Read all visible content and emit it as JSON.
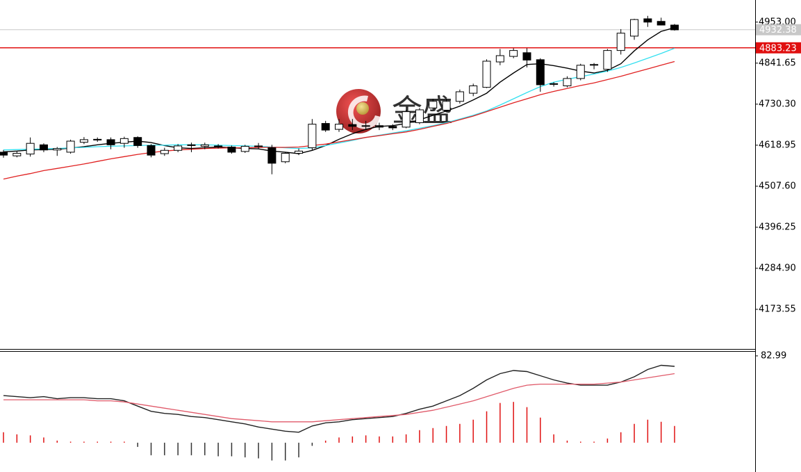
{
  "chart_data": [
    {
      "type": "candlestick",
      "watermark": "金盛",
      "open": [
        4600,
        4590,
        4595,
        4620,
        4606,
        4600,
        4627,
        4633,
        4634,
        4624,
        4640,
        4618,
        4596,
        4605,
        4620,
        4616,
        4617,
        4614,
        4602,
        4615,
        4612,
        4574,
        4597,
        4612,
        4678,
        4662,
        4675,
        4670,
        4672,
        4670,
        4668,
        4680,
        4720,
        4714,
        4738,
        4760,
        4776,
        4845,
        4860,
        4870,
        4851,
        4786,
        4780,
        4800,
        4836,
        4825,
        4876,
        4915,
        4962,
        4955,
        4945
      ],
      "high": [
        4606,
        4602,
        4640,
        4624,
        4614,
        4634,
        4641,
        4640,
        4640,
        4642,
        4643,
        4622,
        4612,
        4622,
        4626,
        4626,
        4622,
        4618,
        4620,
        4625,
        4620,
        4600,
        4610,
        4690,
        4685,
        4690,
        4690,
        4685,
        4680,
        4676,
        4715,
        4720,
        4745,
        4745,
        4770,
        4786,
        4852,
        4880,
        4882,
        4882,
        4855,
        4790,
        4806,
        4840,
        4842,
        4880,
        4934,
        4962,
        4970,
        4965,
        4948
      ],
      "low": [
        4585,
        4586,
        4588,
        4600,
        4590,
        4596,
        4622,
        4628,
        4608,
        4612,
        4612,
        4586,
        4590,
        4600,
        4600,
        4608,
        4610,
        4596,
        4598,
        4610,
        4540,
        4570,
        4592,
        4606,
        4655,
        4655,
        4660,
        4660,
        4660,
        4660,
        4665,
        4676,
        4715,
        4710,
        4732,
        4752,
        4774,
        4836,
        4855,
        4830,
        4764,
        4778,
        4776,
        4795,
        4825,
        4818,
        4865,
        4905,
        4940,
        4944,
        4930
      ],
      "close": [
        4592,
        4597,
        4624,
        4606,
        4610,
        4630,
        4634,
        4635,
        4620,
        4637,
        4618,
        4592,
        4605,
        4617,
        4618,
        4620,
        4615,
        4600,
        4616,
        4617,
        4570,
        4597,
        4603,
        4676,
        4660,
        4676,
        4670,
        4672,
        4668,
        4666,
        4710,
        4715,
        4738,
        4738,
        4764,
        4780,
        4847,
        4862,
        4876,
        4850,
        4783,
        4784,
        4800,
        4836,
        4838,
        4876,
        4923,
        4960,
        4953,
        4945,
        4932
      ],
      "up_color": "#ffffff",
      "down_color": "#000000",
      "lines": [
        {
          "color": "#000000",
          "values": [
            4601,
            4603,
            4606,
            4607,
            4608,
            4611,
            4615,
            4620,
            4624,
            4627,
            4630,
            4626,
            4618,
            4612,
            4610,
            4612,
            4614,
            4612,
            4610,
            4609,
            4603,
            4600,
            4596,
            4605,
            4618,
            4635,
            4650,
            4662,
            4670,
            4672,
            4678,
            4688,
            4700,
            4712,
            4725,
            4742,
            4760,
            4790,
            4815,
            4838,
            4840,
            4835,
            4828,
            4820,
            4815,
            4822,
            4840,
            4875,
            4905,
            4928,
            4938
          ]
        },
        {
          "color": "#33e0f0",
          "values": [
            4606,
            4607,
            4608,
            4609,
            4610,
            4612,
            4613,
            4615,
            4616,
            4617,
            4618,
            4619,
            4619,
            4620,
            4620,
            4620,
            4619,
            4618,
            4617,
            4616,
            4614,
            4612,
            4610,
            4612,
            4618,
            4625,
            4632,
            4640,
            4646,
            4652,
            4658,
            4665,
            4672,
            4680,
            4690,
            4700,
            4712,
            4728,
            4745,
            4762,
            4778,
            4790,
            4798,
            4805,
            4812,
            4820,
            4830,
            4842,
            4855,
            4868,
            4882
          ]
        },
        {
          "color": "#e02020",
          "values": [
            4527,
            4535,
            4542,
            4550,
            4556,
            4562,
            4568,
            4575,
            4582,
            4588,
            4594,
            4599,
            4603,
            4606,
            4608,
            4610,
            4611,
            4612,
            4612,
            4613,
            4613,
            4613,
            4614,
            4618,
            4622,
            4628,
            4634,
            4640,
            4645,
            4650,
            4655,
            4662,
            4670,
            4678,
            4688,
            4698,
            4710,
            4722,
            4734,
            4745,
            4756,
            4765,
            4773,
            4781,
            4788,
            4797,
            4806,
            4816,
            4826,
            4836,
            4846
          ]
        }
      ],
      "price_lines": [
        {
          "value": 4932.38,
          "color": "#c8c8c8"
        },
        {
          "value": 4883.23,
          "color": "#e01010"
        }
      ],
      "ylim": [
        4066,
        5013
      ],
      "yticks": [
        {
          "value": 4953,
          "label": "4953.00"
        },
        4841.65,
        {
          "value": 4730.3,
          "label": "4730.30"
        },
        4618.95,
        {
          "value": 4507.6,
          "label": "4507.60"
        },
        4396.25,
        {
          "value": 4284.9,
          "label": "4284.90"
        },
        4173.55
      ]
    },
    {
      "type": "oscillator",
      "bars": {
        "up_color": "#e01010",
        "down_color": "#333333",
        "values": [
          10,
          8,
          7,
          5,
          2,
          1,
          1,
          1,
          1,
          1,
          -4,
          -12,
          -12,
          -12,
          -12,
          -12,
          -13,
          -13,
          -14,
          -15,
          -17,
          -17,
          -14,
          -3,
          2,
          5,
          6,
          7,
          6,
          6,
          8,
          12,
          14,
          16,
          18,
          22,
          30,
          38,
          39,
          34,
          24,
          8,
          2,
          1,
          1,
          4,
          10,
          18,
          22,
          20,
          16
        ]
      },
      "lines": [
        {
          "color": "#202020",
          "values": [
            45,
            44,
            43,
            44,
            42,
            43,
            43,
            42,
            42,
            40,
            35,
            30,
            28,
            27,
            25,
            24,
            22,
            20,
            18,
            15,
            13,
            11,
            10,
            16,
            19,
            20,
            22,
            23,
            24,
            25,
            28,
            32,
            35,
            40,
            45,
            52,
            60,
            66,
            69,
            68,
            64,
            60,
            57,
            55,
            55,
            55,
            58,
            63,
            70,
            74,
            73
          ]
        },
        {
          "color": "#e05a6a",
          "values": [
            41,
            41,
            41,
            41,
            41,
            41,
            41,
            40,
            40,
            39,
            37,
            35,
            33,
            31,
            29,
            27,
            25,
            23,
            22,
            21,
            20,
            20,
            20,
            20,
            21,
            22,
            23,
            24,
            25,
            26,
            27,
            29,
            31,
            34,
            37,
            40,
            44,
            48,
            52,
            55,
            56,
            56,
            56,
            56,
            56,
            57,
            58,
            60,
            62,
            64,
            66
          ]
        }
      ],
      "ylim": [
        -28,
        87.6
      ],
      "yticks": [
        82.99
      ]
    }
  ]
}
